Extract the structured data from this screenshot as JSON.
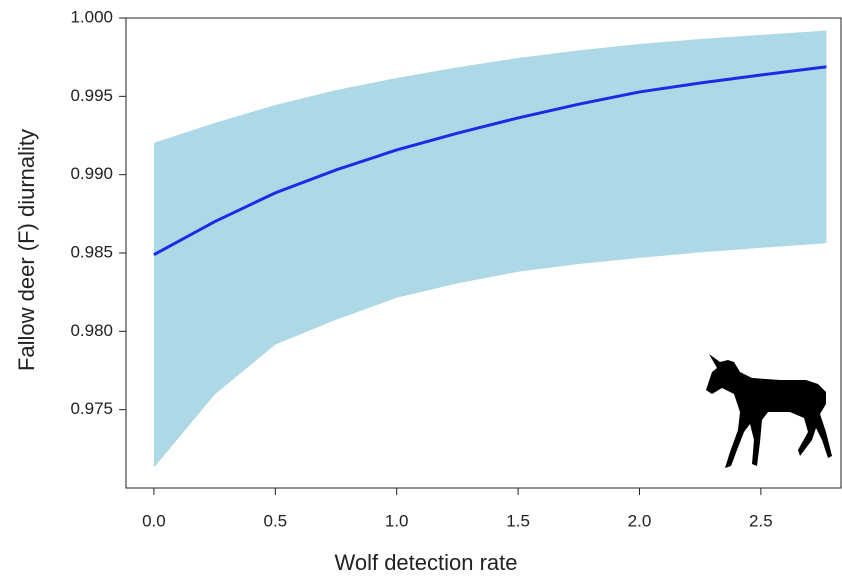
{
  "chart_data": {
    "type": "line",
    "x_label": "Wolf detection rate",
    "y_label": "Fallow deer (F) diurnality",
    "x": [
      0,
      0.25,
      0.5,
      0.75,
      1.0,
      1.25,
      1.5,
      1.75,
      2.0,
      2.25,
      2.5,
      2.75,
      2.77
    ],
    "series": [
      {
        "color": "#1a2de6",
        "values": [
          0.98489,
          0.987,
          0.98884,
          0.9903,
          0.99158,
          0.99265,
          0.99362,
          0.9945,
          0.99528,
          0.99585,
          0.99636,
          0.99685,
          0.99688
        ]
      }
    ],
    "band": {
      "color": "#add8e6",
      "upper": [
        0.99203,
        0.9933,
        0.99445,
        0.9954,
        0.99617,
        0.99685,
        0.99745,
        0.99793,
        0.99834,
        0.99866,
        0.99892,
        0.99918,
        0.9992
      ],
      "lower": [
        0.9713,
        0.97596,
        0.97915,
        0.98074,
        0.98214,
        0.98306,
        0.9838,
        0.9843,
        0.98469,
        0.98504,
        0.98533,
        0.9856,
        0.98565
      ]
    },
    "xlim": [
      -0.115,
      2.83
    ],
    "ylim": [
      0.97,
      1.0
    ],
    "xticks": [
      {
        "value": 0,
        "label": "0.0"
      },
      {
        "value": 0.5,
        "label": "0.5"
      },
      {
        "value": 1,
        "label": "1.0"
      },
      {
        "value": 1.5,
        "label": "1.5"
      },
      {
        "value": 2,
        "label": "2.0"
      },
      {
        "value": 2.5,
        "label": "2.5"
      }
    ],
    "yticks": [
      {
        "value": 0.975,
        "label": "0.975"
      },
      {
        "value": 0.98,
        "label": "0.980"
      },
      {
        "value": 0.985,
        "label": "0.985"
      },
      {
        "value": 0.99,
        "label": "0.990"
      },
      {
        "value": 0.995,
        "label": "0.995"
      },
      {
        "value": 1.0,
        "label": "1.000"
      }
    ]
  }
}
